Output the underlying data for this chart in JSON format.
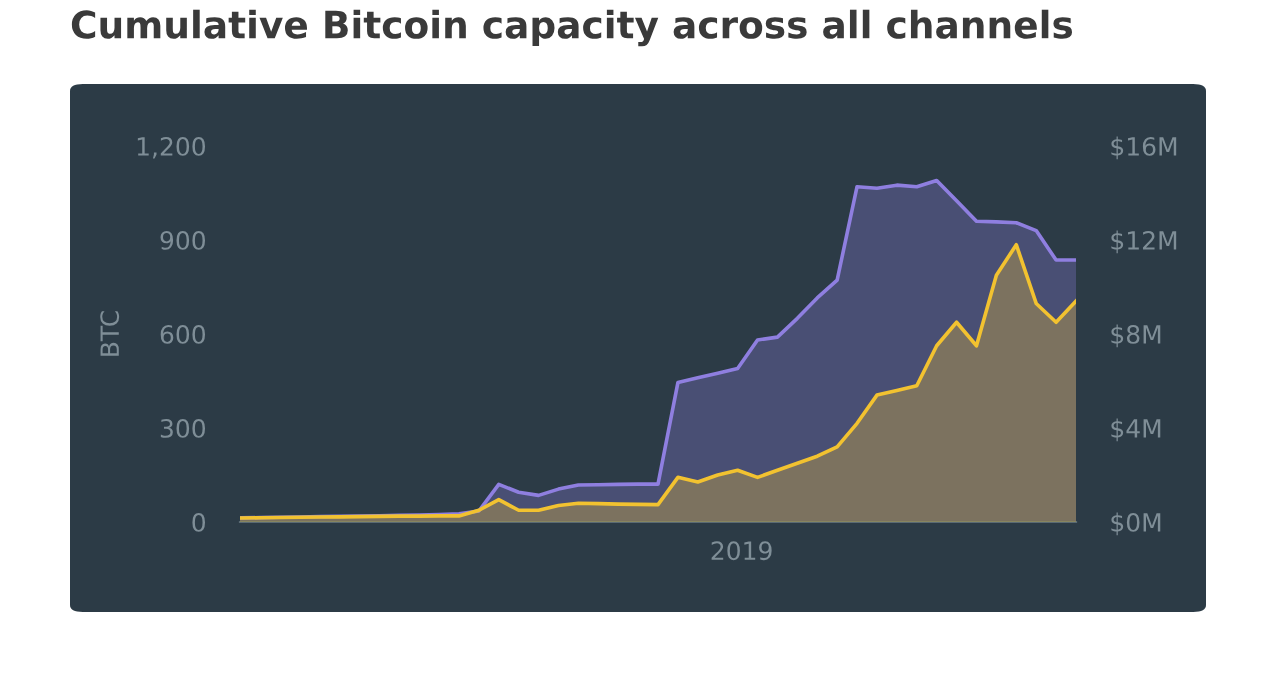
{
  "chart_data": {
    "type": "area",
    "title": "Cumulative Bitcoin capacity across all channels",
    "ylabel": "BTC",
    "categories": [
      null,
      null,
      null,
      null,
      null,
      null,
      null,
      null,
      null,
      null,
      null,
      null,
      null,
      null,
      null,
      null,
      null,
      null,
      null,
      null,
      null,
      null,
      null,
      null,
      null,
      null,
      null,
      null,
      null,
      null,
      null,
      null,
      null,
      null,
      null,
      null,
      null,
      null,
      null,
      null,
      null,
      null,
      null
    ],
    "annotations": [
      "2019"
    ],
    "ylim": [
      0,
      1200
    ],
    "yticks": [
      {
        "value": 0,
        "label": "0"
      },
      {
        "value": 300,
        "label": "300"
      },
      {
        "value": 600,
        "label": "600"
      },
      {
        "value": 900,
        "label": "900"
      },
      {
        "value": 1200,
        "label": "1,200"
      }
    ],
    "y2lim": [
      0,
      16
    ],
    "y2ticks": [
      {
        "value": 0,
        "label": "$0M"
      },
      {
        "value": 4,
        "label": "$4M"
      },
      {
        "value": 8,
        "label": "$8M"
      },
      {
        "value": 12,
        "label": "$12M"
      },
      {
        "value": 16,
        "label": "$16M"
      }
    ],
    "grid": false,
    "legend": false,
    "series": [
      {
        "color": "#8f7fe0",
        "values": [
          13,
          14,
          15,
          16,
          17,
          18,
          19,
          20,
          21,
          22,
          24,
          26,
          35,
          120,
          95,
          85,
          105,
          118,
          119,
          120,
          121,
          121,
          445,
          460,
          475,
          490,
          581,
          590,
          650,
          715,
          772,
          1070,
          1065,
          1075,
          1070,
          1090,
          1025,
          960,
          958,
          955,
          930,
          836,
          836
        ]
      },
      {
        "color": "#f2c230",
        "axis": "y2",
        "values": [
          0.17,
          0.18,
          0.19,
          0.2,
          0.21,
          0.22,
          0.23,
          0.24,
          0.25,
          0.25,
          0.26,
          0.26,
          0.5,
          0.95,
          0.5,
          0.5,
          0.7,
          0.8,
          0.78,
          0.76,
          0.75,
          0.74,
          1.9,
          1.7,
          2.0,
          2.2,
          1.9,
          2.2,
          2.5,
          2.8,
          3.2,
          4.2,
          5.4,
          5.6,
          5.8,
          7.5,
          8.5,
          7.5,
          10.5,
          11.8,
          9.3,
          8.5,
          9.4
        ]
      }
    ]
  }
}
